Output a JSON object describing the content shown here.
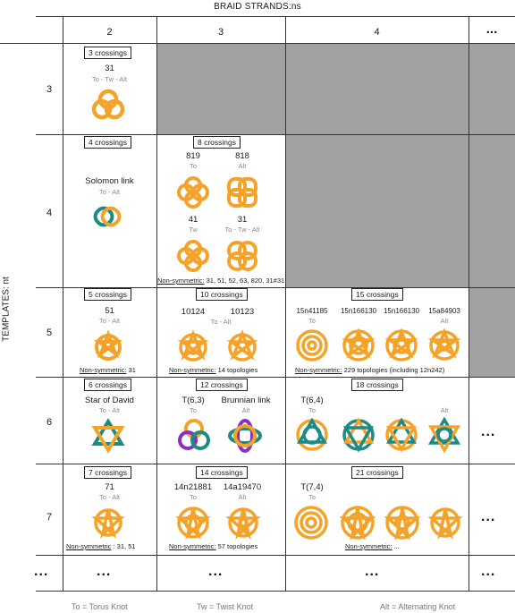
{
  "titles": {
    "top": "BRAID STRANDS:ns",
    "left": "TEMPLATES: nt"
  },
  "columns": [
    "2",
    "3",
    "4",
    "..."
  ],
  "rows": [
    "3",
    "4",
    "5",
    "6",
    "7",
    "..."
  ],
  "cells": {
    "r3c2": {
      "crossings": "3 crossings",
      "knot": "31",
      "type": "To - Tw - Alt"
    },
    "r4c2": {
      "crossings": "4 crossings",
      "knot": "Solomon link",
      "type": "To - Alt"
    },
    "r4c3": {
      "crossings": "8 crossings",
      "knots": [
        {
          "name": "819",
          "type": "To"
        },
        {
          "name": "818",
          "type": "Alt"
        },
        {
          "name": "41",
          "type": "Tw"
        },
        {
          "name": "31",
          "type": "To - Tw - Alt"
        }
      ],
      "note_label": "Non-symmetric:",
      "note_value": "31, 51, 52, 63, 820, 31#31"
    },
    "r5c2": {
      "crossings": "5 crossings",
      "knot": "51",
      "type": "To - Alt",
      "note_label": "Non-symmetric:",
      "note_value": "31"
    },
    "r5c3": {
      "crossings": "10 crossings",
      "knots": [
        {
          "name": "10124",
          "type": ""
        },
        {
          "name": "10123",
          "type": ""
        }
      ],
      "type_span": "To - Alt",
      "note_label": "Non-symmetric:",
      "note_value": "14 topologies"
    },
    "r5c4": {
      "crossings": "15 crossings",
      "knots": [
        {
          "name": "15n41185",
          "type": "To"
        },
        {
          "name": "15n166130",
          "type": ""
        },
        {
          "name": "15n166130",
          "type": ""
        },
        {
          "name": "15a84903",
          "type": "Alt"
        }
      ],
      "note_label": "Non-symmetric:",
      "note_value": "229 topologies (including 12n242)"
    },
    "r6c2": {
      "crossings": "6 crossings",
      "knot": "Star of David",
      "type": "To - Alt"
    },
    "r6c3": {
      "crossings": "12 crossings",
      "knots": [
        {
          "name": "T(6,3)",
          "type": "To"
        },
        {
          "name": "Brunnian link",
          "type": "Alt"
        }
      ]
    },
    "r6c4": {
      "crossings": "18 crossings",
      "knots": [
        {
          "name": "T(6,4)",
          "type": "To"
        },
        {
          "name": "",
          "type": "Alt"
        }
      ]
    },
    "r7c2": {
      "crossings": "7 crossings",
      "knot": "71",
      "type": "To - Alt",
      "note_label": "Non-symmetric",
      "note_value": ": 31, 51"
    },
    "r7c3": {
      "crossings": "14 crossings",
      "knots": [
        {
          "name": "14n21881",
          "type": "To"
        },
        {
          "name": "14a19470",
          "type": "Alt"
        }
      ],
      "note_label": "Non-symmetric:",
      "note_value": "57 topologies"
    },
    "r7c4": {
      "crossings": "21 crossings",
      "knots": [
        {
          "name": "T(7,4)",
          "type": "To"
        }
      ],
      "note_label": "Non-symmetric:",
      "note_value": "..."
    }
  },
  "ellipsis": "...",
  "legend": {
    "torus": "To = Torus Knot",
    "twist": "Tw = Twist Knot",
    "alt": "Alt = Alternating Knot"
  },
  "colors": {
    "orange": "#f5a228",
    "teal": "#1e8a84",
    "purple": "#8a2fc4",
    "gray_fill": "#a2a2a2"
  }
}
